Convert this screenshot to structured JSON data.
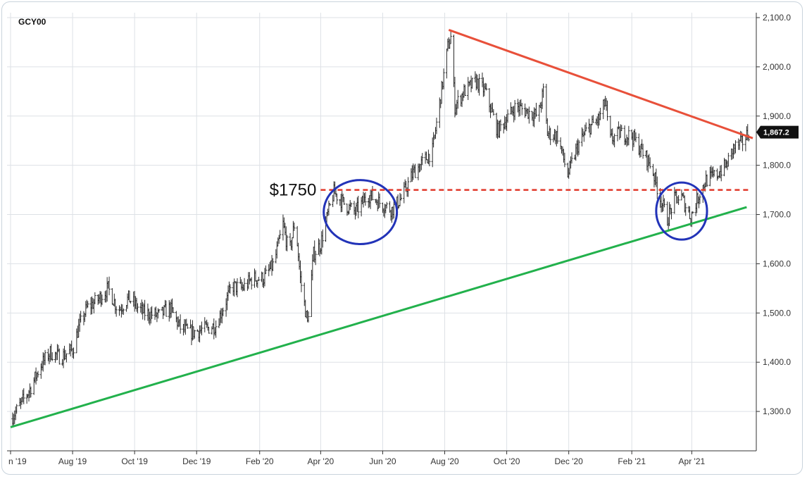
{
  "ticker": "GCY00",
  "colors": {
    "bars": "#2b2b2b",
    "grid": "#dde1e6",
    "resistance_line": "#e8503a",
    "support_line": "#22b14c",
    "level_line": "#e0382a",
    "circles": "#2233b8",
    "price_tag_bg": "#111111"
  },
  "chart_data": {
    "type": "ohlc-bar",
    "title": "",
    "xlabel": "",
    "ylabel": "",
    "y_axis_side": "right",
    "ylim": [
      1220,
      2110
    ],
    "y_ticks": [
      1300,
      1400,
      1500,
      1600,
      1700,
      1800,
      1900,
      2000,
      2100
    ],
    "y_tick_labels": [
      "1,300.0",
      "1,400.0",
      "1,500.0",
      "1,600.0",
      "1,700.0",
      "1,800.0",
      "1,900.0",
      "2,000.0",
      "2,100.0"
    ],
    "x_range": [
      "2019-06-01",
      "2021-05-31"
    ],
    "x_ticks": [
      {
        "date": "2019-06-01",
        "label": "n '19"
      },
      {
        "date": "2019-08-01",
        "label": "Aug '19"
      },
      {
        "date": "2019-10-01",
        "label": "Oct '19"
      },
      {
        "date": "2019-12-01",
        "label": "Dec '19"
      },
      {
        "date": "2020-02-01",
        "label": "Feb '20"
      },
      {
        "date": "2020-04-01",
        "label": "Apr '20"
      },
      {
        "date": "2020-06-01",
        "label": "Jun '20"
      },
      {
        "date": "2020-08-01",
        "label": "Aug '20"
      },
      {
        "date": "2020-10-01",
        "label": "Oct '20"
      },
      {
        "date": "2020-12-01",
        "label": "Dec '20"
      },
      {
        "date": "2021-02-01",
        "label": "Feb '21"
      },
      {
        "date": "2021-04-01",
        "label": "Apr '21"
      }
    ],
    "grid": true,
    "last_price": 1867.2,
    "last_price_label": "1,867.2",
    "price_path": [
      [
        "2019-06-01",
        1285
      ],
      [
        "2019-06-08",
        1305
      ],
      [
        "2019-06-20",
        1345
      ],
      [
        "2019-07-01",
        1395
      ],
      [
        "2019-07-10",
        1420
      ],
      [
        "2019-07-20",
        1410
      ],
      [
        "2019-08-01",
        1425
      ],
      [
        "2019-08-07",
        1470
      ],
      [
        "2019-08-15",
        1510
      ],
      [
        "2019-08-25",
        1525
      ],
      [
        "2019-09-05",
        1550
      ],
      [
        "2019-09-15",
        1505
      ],
      [
        "2019-09-25",
        1530
      ],
      [
        "2019-10-10",
        1500
      ],
      [
        "2019-10-25",
        1495
      ],
      [
        "2019-11-05",
        1510
      ],
      [
        "2019-11-15",
        1470
      ],
      [
        "2019-11-25",
        1460
      ],
      [
        "2019-12-05",
        1465
      ],
      [
        "2019-12-20",
        1475
      ],
      [
        "2020-01-05",
        1555
      ],
      [
        "2020-01-15",
        1550
      ],
      [
        "2020-01-25",
        1570
      ],
      [
        "2020-02-05",
        1570
      ],
      [
        "2020-02-15",
        1600
      ],
      [
        "2020-02-24",
        1680
      ],
      [
        "2020-03-01",
        1620
      ],
      [
        "2020-03-07",
        1690
      ],
      [
        "2020-03-12",
        1570
      ],
      [
        "2020-03-19",
        1480
      ],
      [
        "2020-03-25",
        1620
      ],
      [
        "2020-04-01",
        1640
      ],
      [
        "2020-04-08",
        1700
      ],
      [
        "2020-04-14",
        1745
      ],
      [
        "2020-04-25",
        1720
      ],
      [
        "2020-05-05",
        1705
      ],
      [
        "2020-05-18",
        1740
      ],
      [
        "2020-06-01",
        1720
      ],
      [
        "2020-06-10",
        1710
      ],
      [
        "2020-06-20",
        1735
      ],
      [
        "2020-07-01",
        1785
      ],
      [
        "2020-07-10",
        1805
      ],
      [
        "2020-07-20",
        1830
      ],
      [
        "2020-07-28",
        1940
      ],
      [
        "2020-08-04",
        2040
      ],
      [
        "2020-08-07",
        2060
      ],
      [
        "2020-08-11",
        1920
      ],
      [
        "2020-08-20",
        1950
      ],
      [
        "2020-09-01",
        1970
      ],
      [
        "2020-09-10",
        1950
      ],
      [
        "2020-09-22",
        1870
      ],
      [
        "2020-10-01",
        1895
      ],
      [
        "2020-10-10",
        1920
      ],
      [
        "2020-10-20",
        1910
      ],
      [
        "2020-11-01",
        1900
      ],
      [
        "2020-11-06",
        1950
      ],
      [
        "2020-11-10",
        1865
      ],
      [
        "2020-11-20",
        1860
      ],
      [
        "2020-11-30",
        1780
      ],
      [
        "2020-12-10",
        1840
      ],
      [
        "2020-12-20",
        1875
      ],
      [
        "2020-12-31",
        1895
      ],
      [
        "2021-01-06",
        1930
      ],
      [
        "2021-01-10",
        1850
      ],
      [
        "2021-01-20",
        1865
      ],
      [
        "2021-02-01",
        1860
      ],
      [
        "2021-02-12",
        1825
      ],
      [
        "2021-02-20",
        1800
      ],
      [
        "2021-02-28",
        1740
      ],
      [
        "2021-03-08",
        1690
      ],
      [
        "2021-03-15",
        1730
      ],
      [
        "2021-03-22",
        1735
      ],
      [
        "2021-03-31",
        1695
      ],
      [
        "2021-04-08",
        1740
      ],
      [
        "2021-04-15",
        1770
      ],
      [
        "2021-04-25",
        1780
      ],
      [
        "2021-05-05",
        1800
      ],
      [
        "2021-05-12",
        1835
      ],
      [
        "2021-05-20",
        1845
      ],
      [
        "2021-05-27",
        1867
      ]
    ],
    "annotations": {
      "level": {
        "value": 1750,
        "label": "$1750",
        "from": "2020-04-01",
        "to": "2021-05-27",
        "style": "dashed"
      },
      "resistance": {
        "from": [
          "2020-08-05",
          2075
        ],
        "to": [
          "2021-05-31",
          1855
        ]
      },
      "support": {
        "from": [
          "2019-06-01",
          1268
        ],
        "to": [
          "2021-05-25",
          1715
        ]
      },
      "circles": [
        {
          "center": [
            "2020-05-10",
            1705
          ],
          "rx_days": 36,
          "ry": 65
        },
        {
          "center": [
            "2021-03-22",
            1707
          ],
          "rx_days": 25,
          "ry": 58
        }
      ]
    }
  }
}
